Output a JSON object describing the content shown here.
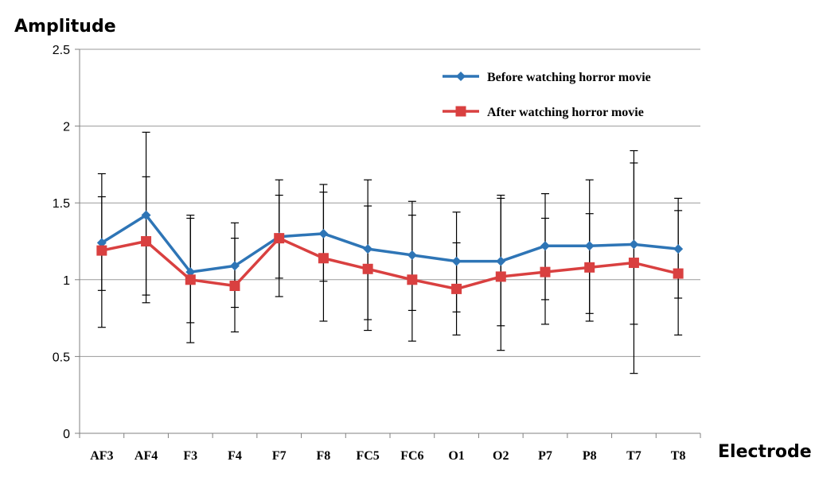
{
  "chart_data": {
    "type": "line",
    "title": "",
    "ylabel": "Amplitude",
    "xlabel": "Electrode",
    "ylim": [
      0,
      2.5
    ],
    "yticks": [
      "0",
      "0.5",
      "1",
      "1.5",
      "2",
      "2.5"
    ],
    "grid": true,
    "legend_position": "top-right",
    "categories": [
      "AF3",
      "AF4",
      "F3",
      "F4",
      "F7",
      "F8",
      "FC5",
      "FC6",
      "O1",
      "O2",
      "P7",
      "P8",
      "T7",
      "T8"
    ],
    "series": [
      {
        "name": "Before watching horror movie",
        "color": "#2E75B6",
        "marker": "diamond",
        "values": [
          1.24,
          1.42,
          1.05,
          1.09,
          1.28,
          1.3,
          1.2,
          1.16,
          1.12,
          1.12,
          1.22,
          1.22,
          1.23,
          1.2
        ],
        "err_low": [
          0.93,
          0.9,
          0.72,
          0.82,
          1.01,
          0.99,
          0.74,
          0.8,
          0.79,
          0.7,
          0.87,
          0.78,
          0.71,
          0.88
        ],
        "err_high": [
          1.54,
          1.96,
          1.4,
          1.27,
          1.55,
          1.62,
          1.65,
          1.51,
          1.44,
          1.55,
          1.56,
          1.65,
          1.76,
          1.53
        ]
      },
      {
        "name": "After watching horror movie",
        "color": "#D94040",
        "marker": "square",
        "values": [
          1.19,
          1.25,
          1.0,
          0.96,
          1.27,
          1.14,
          1.07,
          1.0,
          0.94,
          1.02,
          1.05,
          1.08,
          1.11,
          1.04
        ],
        "err_low": [
          0.69,
          0.85,
          0.59,
          0.66,
          0.89,
          0.73,
          0.67,
          0.6,
          0.64,
          0.54,
          0.71,
          0.73,
          0.39,
          0.64
        ],
        "err_high": [
          1.69,
          1.67,
          1.42,
          1.37,
          1.65,
          1.57,
          1.48,
          1.42,
          1.24,
          1.53,
          1.4,
          1.43,
          1.84,
          1.45
        ]
      }
    ]
  }
}
